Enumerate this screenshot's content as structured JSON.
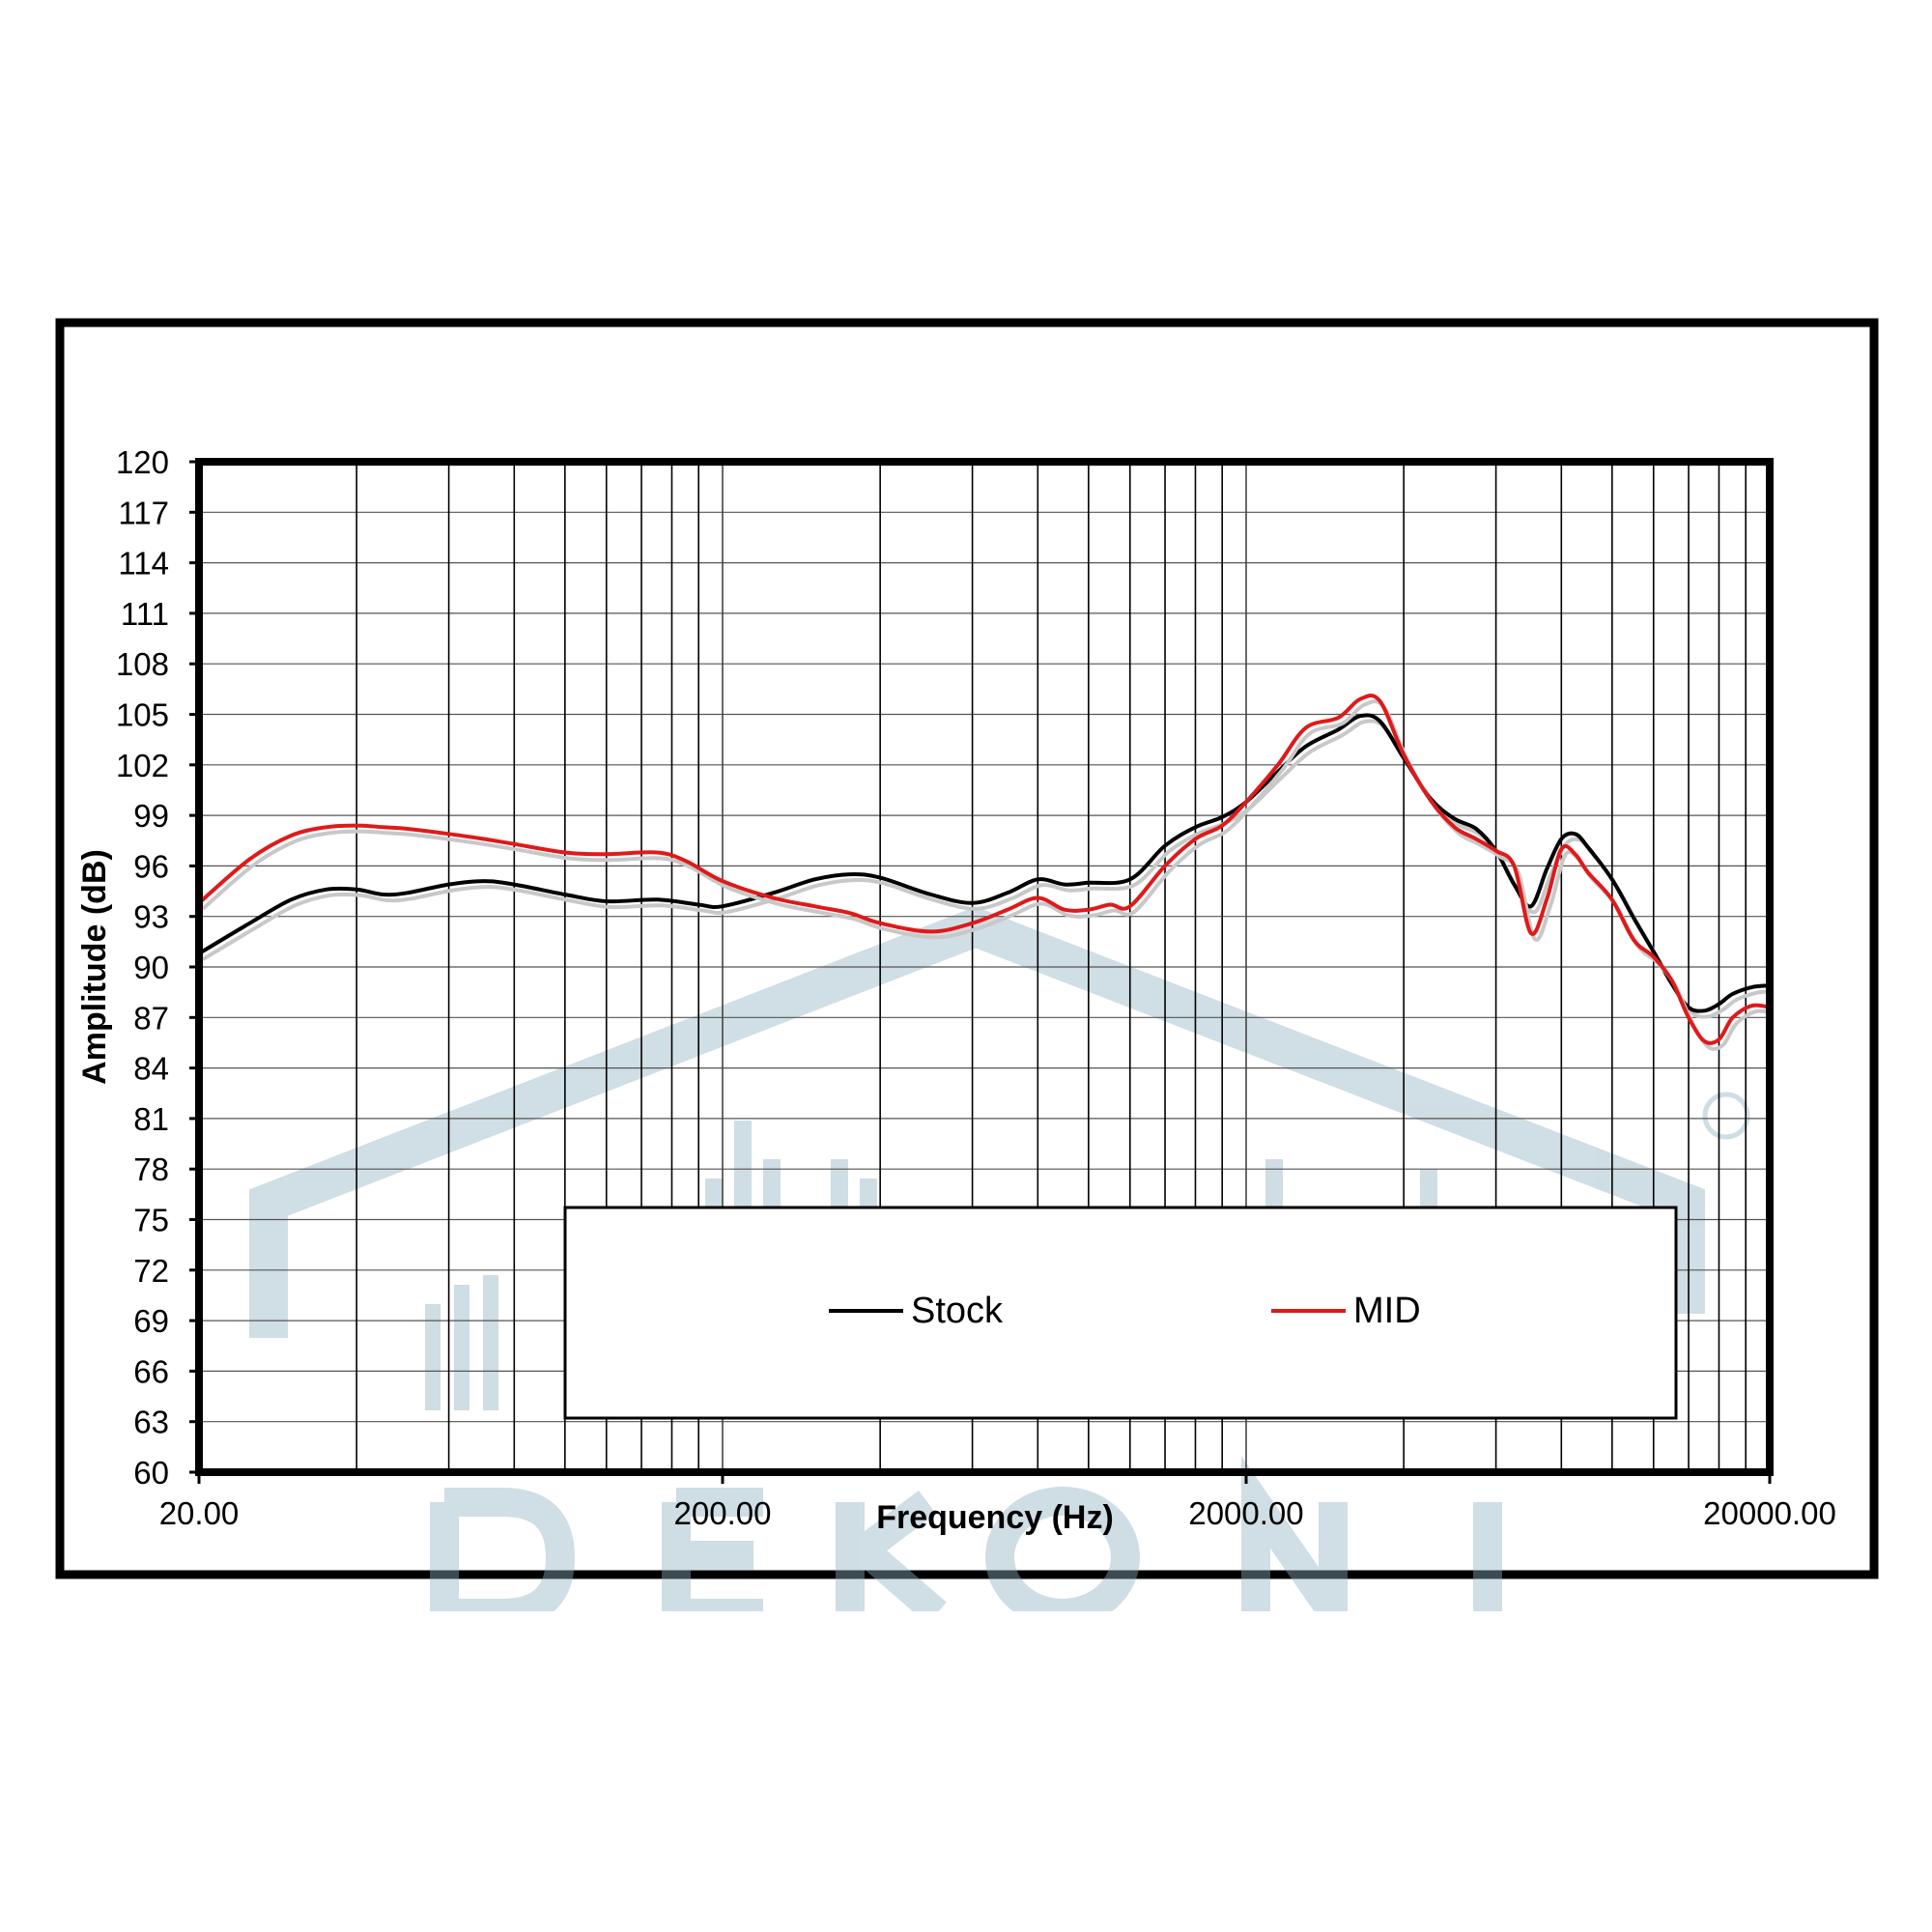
{
  "chart_data": {
    "type": "line",
    "title": "",
    "xlabel": "Frequency (Hz)",
    "ylabel": "Amplitude (dB)",
    "x_scale": "log",
    "xlim": [
      20,
      20000
    ],
    "ylim": [
      60,
      120
    ],
    "x_ticks": [
      20,
      200,
      2000,
      20000
    ],
    "x_tick_labels": [
      "20.00",
      "200.00",
      "2000.00",
      "20000.00"
    ],
    "y_ticks": [
      60,
      63,
      66,
      69,
      72,
      75,
      78,
      81,
      84,
      87,
      90,
      93,
      96,
      99,
      102,
      105,
      108,
      111,
      114,
      117,
      120
    ],
    "y_tick_labels": [
      "60",
      "63",
      "66",
      "69",
      "72",
      "75",
      "78",
      "81",
      "84",
      "87",
      "90",
      "93",
      "96",
      "99",
      "102",
      "105",
      "108",
      "111",
      "114",
      "117",
      "120"
    ],
    "grid": true,
    "legend_position": "bottom-center",
    "series": [
      {
        "name": "Stock",
        "color": "#000000",
        "points": [
          [
            20,
            90.8
          ],
          [
            25,
            92.6
          ],
          [
            30,
            94.0
          ],
          [
            35,
            94.6
          ],
          [
            40,
            94.6
          ],
          [
            45,
            94.3
          ],
          [
            50,
            94.4
          ],
          [
            60,
            94.9
          ],
          [
            70,
            95.1
          ],
          [
            80,
            94.9
          ],
          [
            100,
            94.3
          ],
          [
            120,
            93.9
          ],
          [
            150,
            94.0
          ],
          [
            180,
            93.7
          ],
          [
            200,
            93.6
          ],
          [
            250,
            94.4
          ],
          [
            300,
            95.2
          ],
          [
            350,
            95.5
          ],
          [
            400,
            95.3
          ],
          [
            500,
            94.3
          ],
          [
            600,
            93.8
          ],
          [
            700,
            94.4
          ],
          [
            800,
            95.2
          ],
          [
            900,
            94.9
          ],
          [
            1000,
            95.0
          ],
          [
            1200,
            95.2
          ],
          [
            1400,
            97.2
          ],
          [
            1600,
            98.3
          ],
          [
            1800,
            98.9
          ],
          [
            2000,
            99.8
          ],
          [
            2300,
            101.6
          ],
          [
            2600,
            103.1
          ],
          [
            3000,
            104.1
          ],
          [
            3300,
            104.9
          ],
          [
            3600,
            104.6
          ],
          [
            4000,
            102.4
          ],
          [
            4500,
            100.0
          ],
          [
            5000,
            98.8
          ],
          [
            5500,
            98.2
          ],
          [
            6000,
            96.9
          ],
          [
            6500,
            94.9
          ],
          [
            7000,
            93.6
          ],
          [
            7500,
            95.8
          ],
          [
            8000,
            97.6
          ],
          [
            8500,
            97.9
          ],
          [
            9000,
            97.1
          ],
          [
            10000,
            95.2
          ],
          [
            11000,
            92.9
          ],
          [
            12000,
            90.9
          ],
          [
            13000,
            89.0
          ],
          [
            14000,
            87.6
          ],
          [
            15000,
            87.4
          ],
          [
            16000,
            87.8
          ],
          [
            17000,
            88.4
          ],
          [
            18500,
            88.8
          ],
          [
            20000,
            88.9
          ]
        ]
      },
      {
        "name": "MID",
        "color": "#e01919",
        "points": [
          [
            20,
            93.8
          ],
          [
            25,
            96.4
          ],
          [
            30,
            97.8
          ],
          [
            35,
            98.3
          ],
          [
            40,
            98.4
          ],
          [
            45,
            98.3
          ],
          [
            50,
            98.2
          ],
          [
            60,
            97.9
          ],
          [
            70,
            97.6
          ],
          [
            80,
            97.3
          ],
          [
            100,
            96.8
          ],
          [
            120,
            96.7
          ],
          [
            150,
            96.8
          ],
          [
            170,
            96.3
          ],
          [
            200,
            95.1
          ],
          [
            250,
            94.1
          ],
          [
            300,
            93.6
          ],
          [
            350,
            93.2
          ],
          [
            400,
            92.6
          ],
          [
            500,
            92.1
          ],
          [
            600,
            92.6
          ],
          [
            700,
            93.4
          ],
          [
            800,
            94.1
          ],
          [
            900,
            93.4
          ],
          [
            1000,
            93.4
          ],
          [
            1100,
            93.7
          ],
          [
            1200,
            93.6
          ],
          [
            1400,
            96.0
          ],
          [
            1600,
            97.6
          ],
          [
            1800,
            98.4
          ],
          [
            2000,
            99.8
          ],
          [
            2300,
            102.0
          ],
          [
            2600,
            104.2
          ],
          [
            3000,
            104.8
          ],
          [
            3300,
            105.9
          ],
          [
            3600,
            105.8
          ],
          [
            4000,
            102.6
          ],
          [
            4500,
            99.9
          ],
          [
            5000,
            98.3
          ],
          [
            5500,
            97.6
          ],
          [
            6000,
            96.9
          ],
          [
            6500,
            96.0
          ],
          [
            7000,
            92.0
          ],
          [
            7500,
            94.0
          ],
          [
            8000,
            97.0
          ],
          [
            8500,
            96.7
          ],
          [
            9000,
            95.6
          ],
          [
            10000,
            94.0
          ],
          [
            11000,
            91.6
          ],
          [
            12000,
            90.6
          ],
          [
            13000,
            89.2
          ],
          [
            14000,
            87.0
          ],
          [
            15000,
            85.6
          ],
          [
            16000,
            85.7
          ],
          [
            17000,
            87.0
          ],
          [
            18500,
            87.7
          ],
          [
            20000,
            87.6
          ]
        ]
      }
    ],
    "watermark": "DEKONI"
  }
}
